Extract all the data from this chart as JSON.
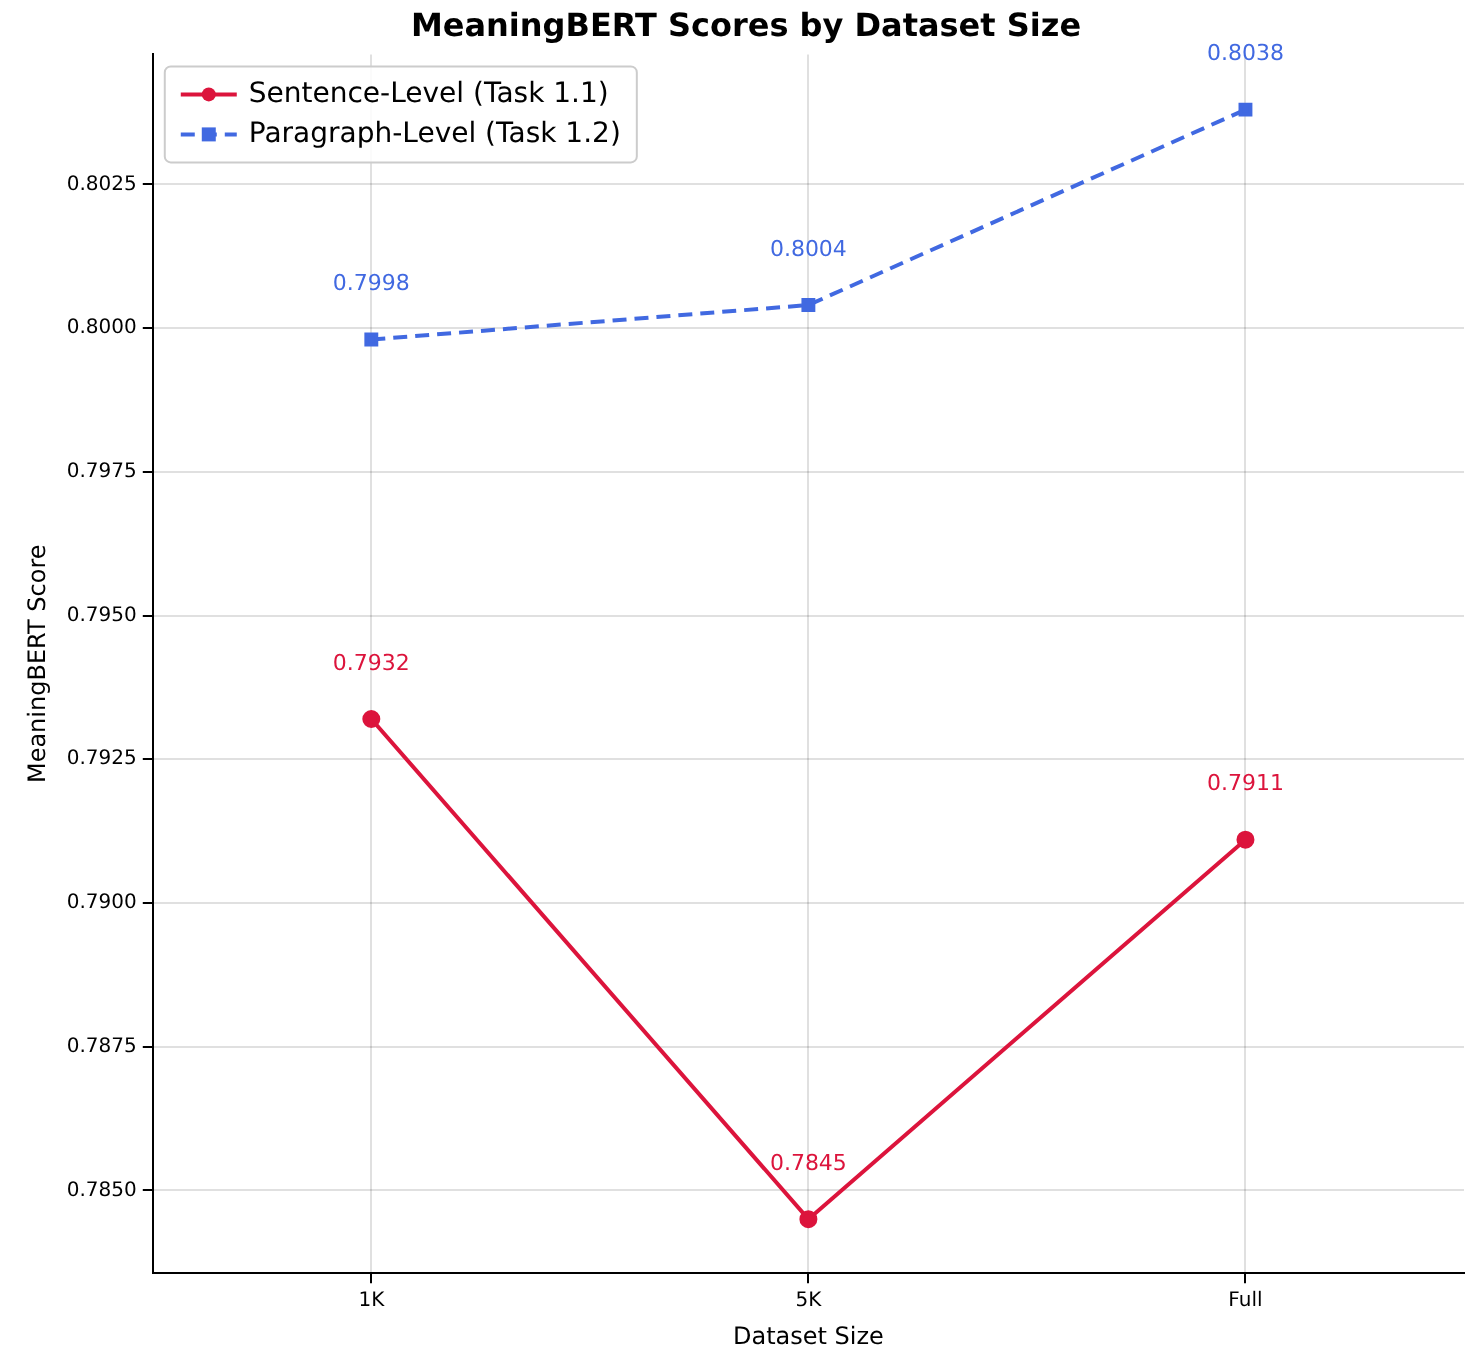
{
  "chart_data": {
    "type": "line",
    "title": "MeaningBERT Scores by Dataset Size",
    "xlabel": "Dataset Size",
    "ylabel": "MeaningBERT Score",
    "categories": [
      "1K",
      "5K",
      "Full"
    ],
    "series": [
      {
        "name": "Sentence-Level (Task 1.1)",
        "color": "#dc143c",
        "values": [
          0.7932,
          0.7845,
          0.7911
        ],
        "marker": "circle",
        "line_style": "solid"
      },
      {
        "name": "Paragraph-Level (Task 1.2)",
        "color": "#4169e1",
        "values": [
          0.7998,
          0.8004,
          0.8038
        ],
        "marker": "square",
        "line_style": "dashed"
      }
    ],
    "ylim": [
      0.78356,
      0.80476
    ],
    "yticks": [
      {
        "value": 0.785,
        "label": "0.7850"
      },
      0.7875,
      {
        "value": 0.79,
        "label": "0.7900"
      },
      0.7925,
      {
        "value": 0.795,
        "label": "0.7950"
      },
      0.7975,
      {
        "value": 0.8,
        "label": "0.8000"
      },
      0.8025
    ],
    "grid": true,
    "legend": "top left",
    "data_labels": true
  }
}
